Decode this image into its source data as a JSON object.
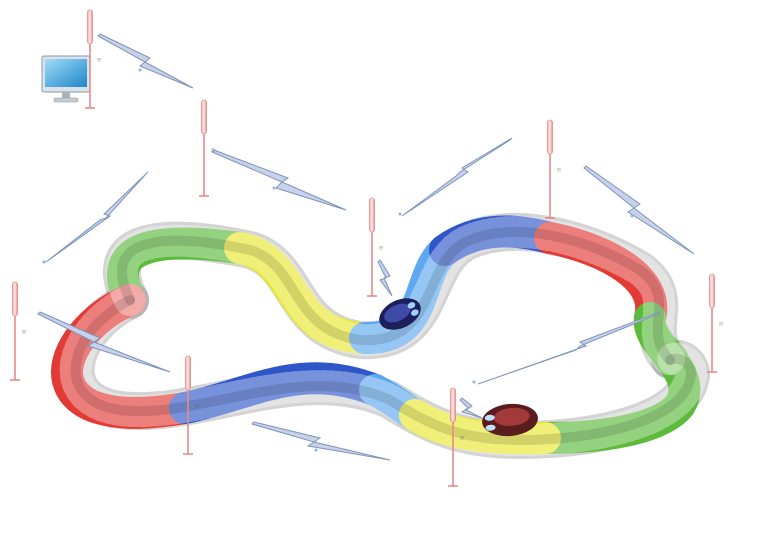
{
  "scene": {
    "background": "#ffffff",
    "track_colors": {
      "green": "#5dbb3c",
      "yellow": "#e8e830",
      "blue": "#2f56c8",
      "light_blue": "#5fa8ef",
      "red": "#e23a35"
    },
    "antenna_color": "#e88a8a",
    "signal_color": "#8ea0c4",
    "monitor_color": "#3aa7e0"
  },
  "antennas": [
    {
      "id": "a1",
      "mark": "!!"
    },
    {
      "id": "a2",
      "mark": "!!"
    },
    {
      "id": "a3",
      "mark": "!!"
    },
    {
      "id": "a4",
      "mark": "!!"
    },
    {
      "id": "a5",
      "mark": "!!"
    },
    {
      "id": "a6",
      "mark": "!!"
    },
    {
      "id": "a7",
      "mark": "!!"
    },
    {
      "id": "a8",
      "mark": "!!"
    }
  ],
  "computer": {
    "icon": "monitor-icon"
  },
  "cars": [
    {
      "id": "car-blue",
      "icon": "race-car-icon",
      "color": "#2a2e7a"
    },
    {
      "id": "car-red",
      "icon": "race-car-icon",
      "color": "#8a2a2a"
    }
  ]
}
